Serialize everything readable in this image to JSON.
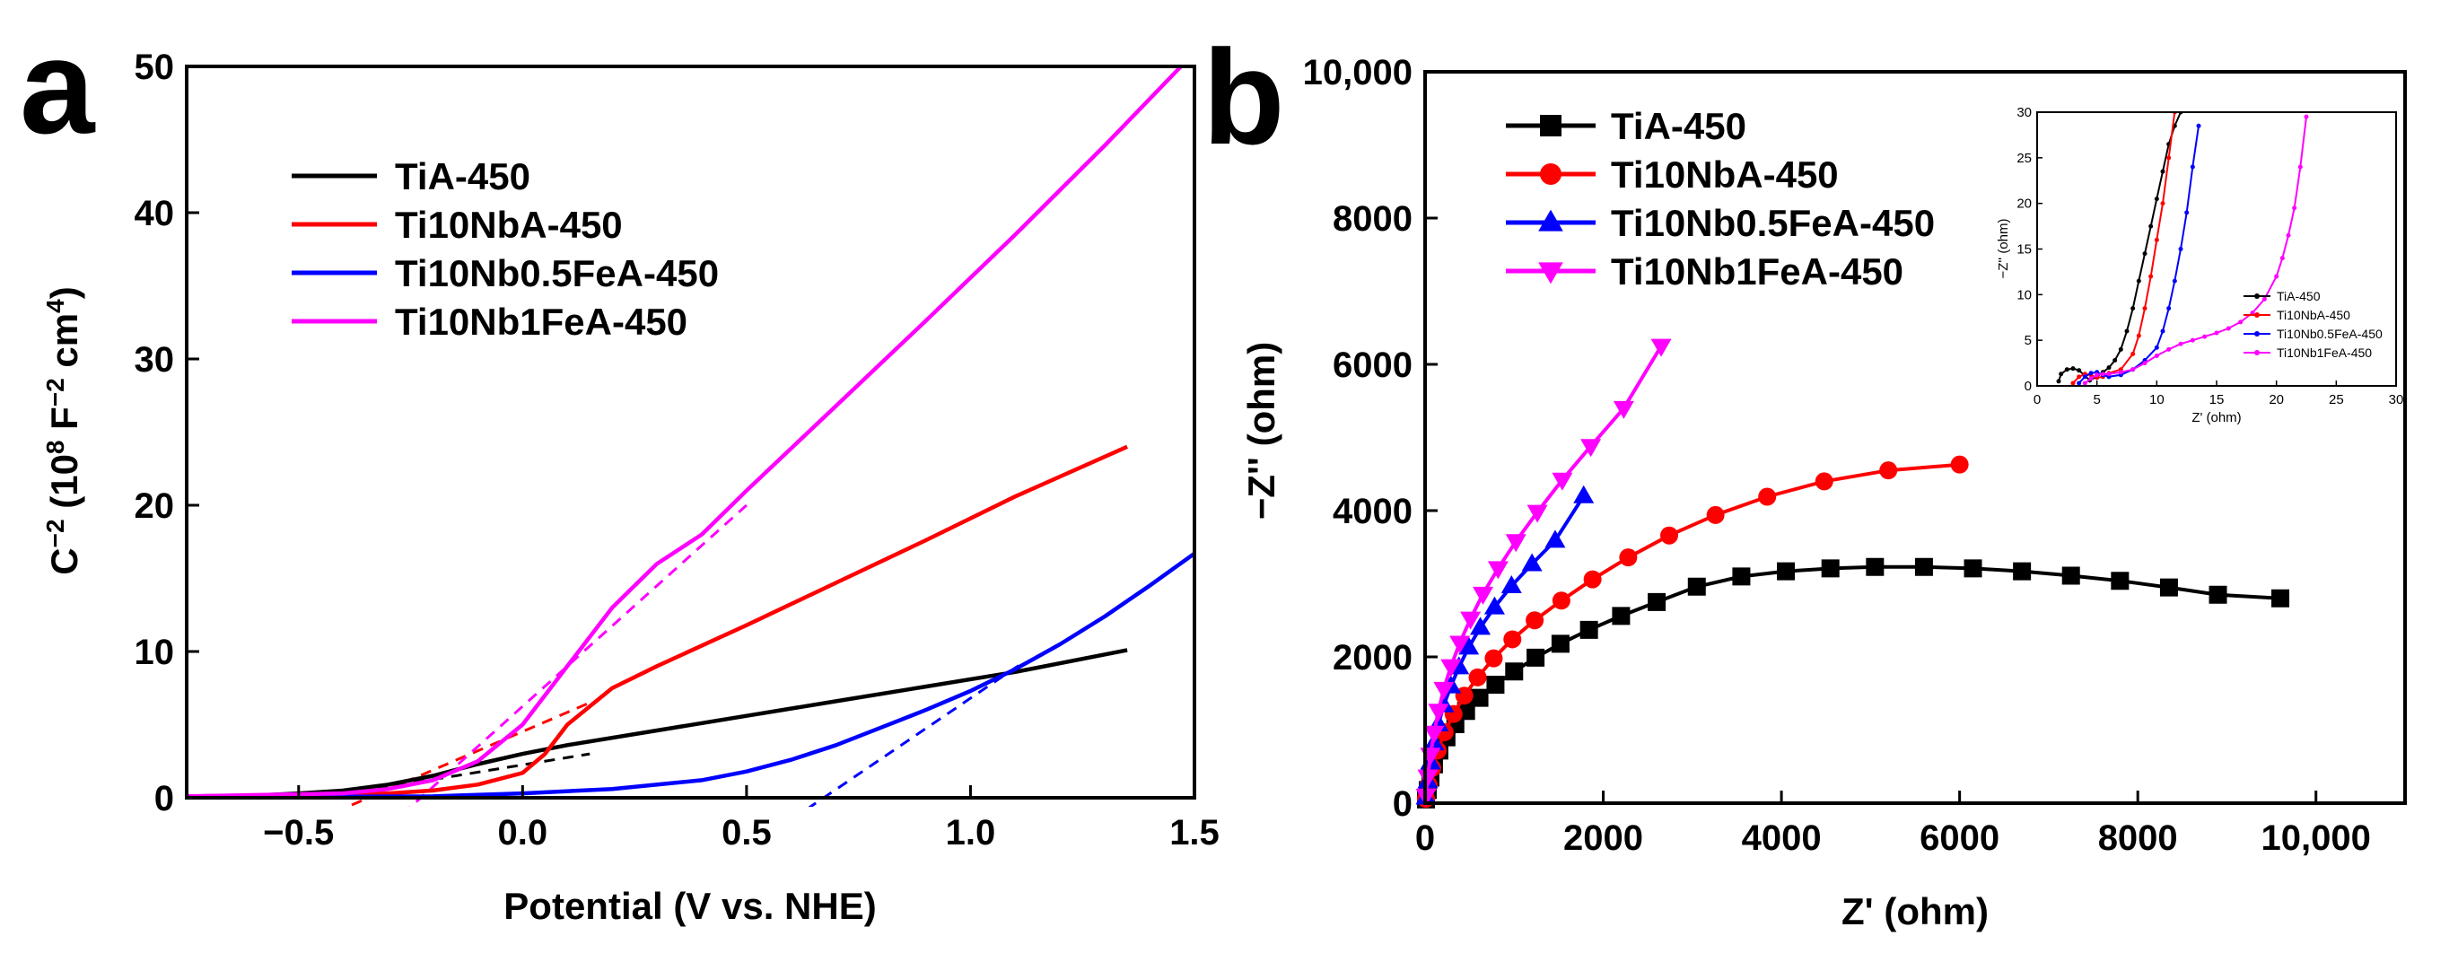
{
  "chart_data": [
    {
      "panel_label": "a",
      "type": "line",
      "title": "",
      "xlabel": "Potential (V vs. NHE)",
      "ylabel_html": [
        "C",
        "−2",
        " (10",
        "8",
        " F",
        "−2",
        " cm",
        "4",
        ")"
      ],
      "xlim": [
        -0.75,
        1.5
      ],
      "ylim": [
        0,
        50
      ],
      "xticks": [
        -0.5,
        0.0,
        0.5,
        1.0,
        1.5
      ],
      "xtick_labels": [
        "−0.5",
        "0.0",
        "0.5",
        "1.0",
        "1.5"
      ],
      "yticks": [
        0,
        10,
        20,
        30,
        40,
        50
      ],
      "ytick_labels": [
        "0",
        "10",
        "20",
        "30",
        "40",
        "50"
      ],
      "legend_position": "upper-left",
      "series": [
        {
          "name": "TiA-450",
          "color": "#000000",
          "x": [
            -0.75,
            -0.6,
            -0.5,
            -0.4,
            -0.3,
            -0.2,
            -0.1,
            0.0,
            0.1,
            0.3,
            0.5,
            0.7,
            0.9,
            1.1,
            1.35
          ],
          "y": [
            0.1,
            0.15,
            0.3,
            0.5,
            0.9,
            1.5,
            2.3,
            3.0,
            3.6,
            4.6,
            5.6,
            6.6,
            7.6,
            8.6,
            10.1
          ]
        },
        {
          "name": "Ti10NbA-450",
          "color": "#ff0000",
          "x": [
            -0.75,
            -0.4,
            -0.3,
            -0.2,
            -0.1,
            0.0,
            0.05,
            0.1,
            0.2,
            0.3,
            0.5,
            0.7,
            0.9,
            1.1,
            1.35
          ],
          "y": [
            0.1,
            0.2,
            0.3,
            0.5,
            0.9,
            1.7,
            3.0,
            5.0,
            7.5,
            9.0,
            11.8,
            14.7,
            17.6,
            20.6,
            24.0
          ]
        },
        {
          "name": "Ti10Nb0.5FeA-450",
          "color": "#0000ff",
          "x": [
            -0.75,
            -0.2,
            0.0,
            0.2,
            0.4,
            0.5,
            0.6,
            0.7,
            0.8,
            0.9,
            1.0,
            1.1,
            1.2,
            1.3,
            1.4,
            1.5
          ],
          "y": [
            0.05,
            0.1,
            0.3,
            0.6,
            1.2,
            1.8,
            2.6,
            3.6,
            4.8,
            6.0,
            7.3,
            8.8,
            10.5,
            12.4,
            14.5,
            16.7
          ]
        },
        {
          "name": "Ti10Nb1FeA-450",
          "color": "#ff00ff",
          "x": [
            -0.75,
            -0.4,
            -0.3,
            -0.2,
            -0.1,
            0.0,
            0.1,
            0.2,
            0.3,
            0.4,
            0.5,
            0.7,
            0.9,
            1.1,
            1.3,
            1.47
          ],
          "y": [
            0.1,
            0.3,
            0.6,
            1.2,
            2.5,
            5.0,
            9.0,
            13.0,
            16.0,
            18.0,
            21.0,
            26.8,
            32.6,
            38.5,
            44.6,
            50.0
          ]
        }
      ],
      "fit_lines": [
        {
          "series": "TiA-450",
          "color": "#000000",
          "x": [
            -0.45,
            0.15
          ],
          "y": [
            0.0,
            3.0
          ]
        },
        {
          "series": "Ti10NbA-450",
          "color": "#ff0000",
          "x": [
            -0.42,
            0.15
          ],
          "y": [
            -1.0,
            6.5
          ]
        },
        {
          "series": "Ti10Nb0.5FeA-450",
          "color": "#0000ff",
          "x": [
            0.6,
            1.12
          ],
          "y": [
            -1.5,
            9.3
          ]
        },
        {
          "series": "Ti10Nb1FeA-450",
          "color": "#ff00ff",
          "x": [
            -0.3,
            0.5
          ],
          "y": [
            -2.0,
            20.0
          ]
        }
      ]
    },
    {
      "panel_label": "b",
      "type": "scatter",
      "title": "",
      "xlabel": "Z' (ohm)",
      "ylabel": "−Z'' (ohm)",
      "xlim": [
        0,
        11000
      ],
      "ylim": [
        0,
        10000
      ],
      "xticks": [
        0,
        2000,
        4000,
        6000,
        8000,
        10000
      ],
      "xtick_labels": [
        "0",
        "2000",
        "4000",
        "6000",
        "8000",
        "10,000"
      ],
      "yticks": [
        0,
        2000,
        4000,
        6000,
        8000,
        10000
      ],
      "ytick_labels": [
        "0",
        "2000",
        "4000",
        "6000",
        "8000",
        "10,000"
      ],
      "legend_position": "upper-left",
      "series": [
        {
          "name": "TiA-450",
          "color": "#000000",
          "marker": "square",
          "x": [
            10,
            30,
            60,
            100,
            160,
            240,
            340,
            460,
            610,
            790,
            1000,
            1240,
            1520,
            1840,
            2200,
            2600,
            3050,
            3550,
            4050,
            4550,
            5050,
            5600,
            6150,
            6700,
            7250,
            7800,
            8350,
            8900,
            9600
          ],
          "y": [
            50,
            180,
            350,
            530,
            720,
            900,
            1080,
            1260,
            1440,
            1620,
            1800,
            1990,
            2180,
            2370,
            2560,
            2750,
            2960,
            3100,
            3170,
            3210,
            3230,
            3230,
            3210,
            3170,
            3110,
            3040,
            2950,
            2850,
            2800
          ]
        },
        {
          "name": "Ti10NbA-450",
          "color": "#ff0000",
          "marker": "circle",
          "x": [
            10,
            40,
            80,
            140,
            220,
            320,
            440,
            590,
            770,
            980,
            1230,
            1530,
            1880,
            2280,
            2740,
            3260,
            3840,
            4480,
            5200,
            6000
          ],
          "y": [
            60,
            250,
            480,
            720,
            970,
            1220,
            1470,
            1720,
            1980,
            2240,
            2500,
            2770,
            3060,
            3360,
            3660,
            3940,
            4190,
            4400,
            4550,
            4630
          ]
        },
        {
          "name": "Ti10Nb0.5FeA-450",
          "color": "#0000ff",
          "marker": "triangle-up",
          "x": [
            10,
            30,
            60,
            100,
            150,
            210,
            290,
            380,
            490,
            620,
            780,
            970,
            1200,
            1460,
            1780
          ],
          "y": [
            80,
            300,
            560,
            820,
            1080,
            1340,
            1600,
            1860,
            2130,
            2400,
            2680,
            2970,
            3270,
            3590,
            4200
          ]
        },
        {
          "name": "Ti10Nb1FeA-450",
          "color": "#ff00ff",
          "marker": "triangle-down",
          "x": [
            10,
            30,
            60,
            100,
            150,
            210,
            290,
            390,
            510,
            650,
            820,
            1020,
            1260,
            1540,
            1860,
            2230,
            2650
          ],
          "y": [
            100,
            360,
            660,
            960,
            1260,
            1560,
            1870,
            2190,
            2520,
            2860,
            3210,
            3580,
            3980,
            4420,
            4880,
            5400,
            6250
          ]
        }
      ],
      "inset": {
        "xlabel": "Z' (ohm)",
        "ylabel": "−Z'' (ohm)",
        "xlim": [
          0,
          30
        ],
        "ylim": [
          0,
          30
        ],
        "xticks": [
          0,
          5,
          10,
          15,
          20,
          25,
          30
        ],
        "yticks": [
          0,
          5,
          10,
          15,
          20,
          25,
          30
        ],
        "legend_position": "bottom-right",
        "series": [
          {
            "name": "TiA-450",
            "color": "#000000",
            "x": [
              1.8,
              2.0,
              2.5,
              3.0,
              3.5,
              4.0,
              4.4,
              5.0,
              5.5,
              6.0,
              6.5,
              7.0,
              7.5,
              8.0,
              8.5,
              9.0,
              9.5,
              10.0,
              10.5,
              11.0,
              11.5,
              12.0
            ],
            "y": [
              0.5,
              1.3,
              1.8,
              1.9,
              1.7,
              1.1,
              0.6,
              1.0,
              1.5,
              2.0,
              2.8,
              4.0,
              6.0,
              8.5,
              11.5,
              14.5,
              17.5,
              20.5,
              23.5,
              26.5,
              28.5,
              30.0
            ]
          },
          {
            "name": "Ti10NbA-450",
            "color": "#ff0000",
            "x": [
              3.0,
              3.5,
              4.0,
              4.5,
              5.0,
              5.5,
              6.0,
              7.0,
              8.0,
              8.5,
              9.0,
              9.5,
              10.0,
              10.5,
              11.0,
              11.5
            ],
            "y": [
              0.3,
              1.0,
              1.3,
              1.2,
              0.9,
              1.0,
              1.4,
              1.8,
              3.5,
              5.5,
              8.5,
              12.0,
              16.0,
              20.0,
              25.0,
              30.0
            ]
          },
          {
            "name": "Ti10Nb0.5FeA-450",
            "color": "#0000ff",
            "x": [
              3.5,
              4.0,
              4.5,
              5.0,
              5.5,
              6.0,
              7.0,
              8.0,
              9.0,
              10.0,
              10.5,
              11.0,
              11.5,
              12.0,
              12.5,
              13.0,
              13.5
            ],
            "y": [
              0.3,
              1.0,
              1.4,
              1.5,
              1.2,
              1.0,
              1.2,
              1.8,
              2.8,
              4.2,
              6.0,
              8.5,
              11.5,
              15.0,
              19.0,
              24.0,
              28.5
            ]
          },
          {
            "name": "Ti10Nb1FeA-450",
            "color": "#ff00ff",
            "x": [
              4.0,
              4.5,
              5.0,
              5.5,
              6.0,
              7.0,
              8.0,
              9.0,
              10.0,
              11.0,
              12.0,
              13.0,
              14.0,
              15.0,
              16.0,
              17.0,
              18.0,
              19.0,
              20.0,
              20.5,
              21.0,
              21.5,
              22.0,
              22.5
            ],
            "y": [
              0.3,
              0.8,
              1.2,
              1.3,
              1.3,
              1.5,
              1.8,
              2.5,
              3.3,
              4.0,
              4.6,
              5.0,
              5.4,
              5.8,
              6.3,
              7.0,
              8.0,
              9.5,
              12.0,
              14.0,
              16.5,
              19.5,
              24.0,
              29.5
            ]
          }
        ]
      }
    }
  ]
}
